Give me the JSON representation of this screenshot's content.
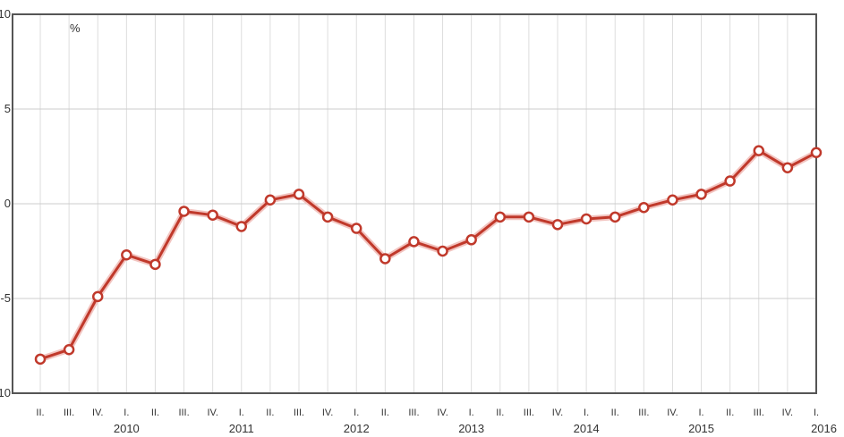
{
  "chart_data": {
    "type": "line",
    "unit_label": "%",
    "ylim": [
      -10,
      10
    ],
    "y_ticks": [
      "10",
      "5",
      "0",
      "-5",
      "-10"
    ],
    "grid": true,
    "legend": "none",
    "categories": [
      "II.",
      "III.",
      "IV.",
      "I.",
      "II.",
      "III.",
      "IV.",
      "I.",
      "II.",
      "III.",
      "IV.",
      "I.",
      "II.",
      "III.",
      "IV.",
      "I.",
      "II.",
      "III.",
      "IV.",
      "I.",
      "II.",
      "III.",
      "IV.",
      "I.",
      "II.",
      "III.",
      "IV.",
      "I."
    ],
    "years": [
      {
        "label": "2010",
        "index": 3
      },
      {
        "label": "2011",
        "index": 7
      },
      {
        "label": "2012",
        "index": 11
      },
      {
        "label": "2013",
        "index": 15
      },
      {
        "label": "2014",
        "index": 19
      },
      {
        "label": "2015",
        "index": 23
      },
      {
        "label": "2016",
        "index": 27
      }
    ],
    "series": [
      {
        "values": [
          -8.2,
          -7.7,
          -4.9,
          -2.7,
          -3.2,
          -0.4,
          -0.6,
          -1.2,
          0.2,
          0.5,
          -0.7,
          -1.3,
          -2.9,
          -2.0,
          -2.5,
          -1.9,
          -0.7,
          -0.7,
          -1.1,
          -0.8,
          -0.7,
          -0.2,
          0.2,
          0.5,
          1.2,
          2.8,
          1.9,
          2.7
        ],
        "color": "#c0392b"
      }
    ]
  }
}
